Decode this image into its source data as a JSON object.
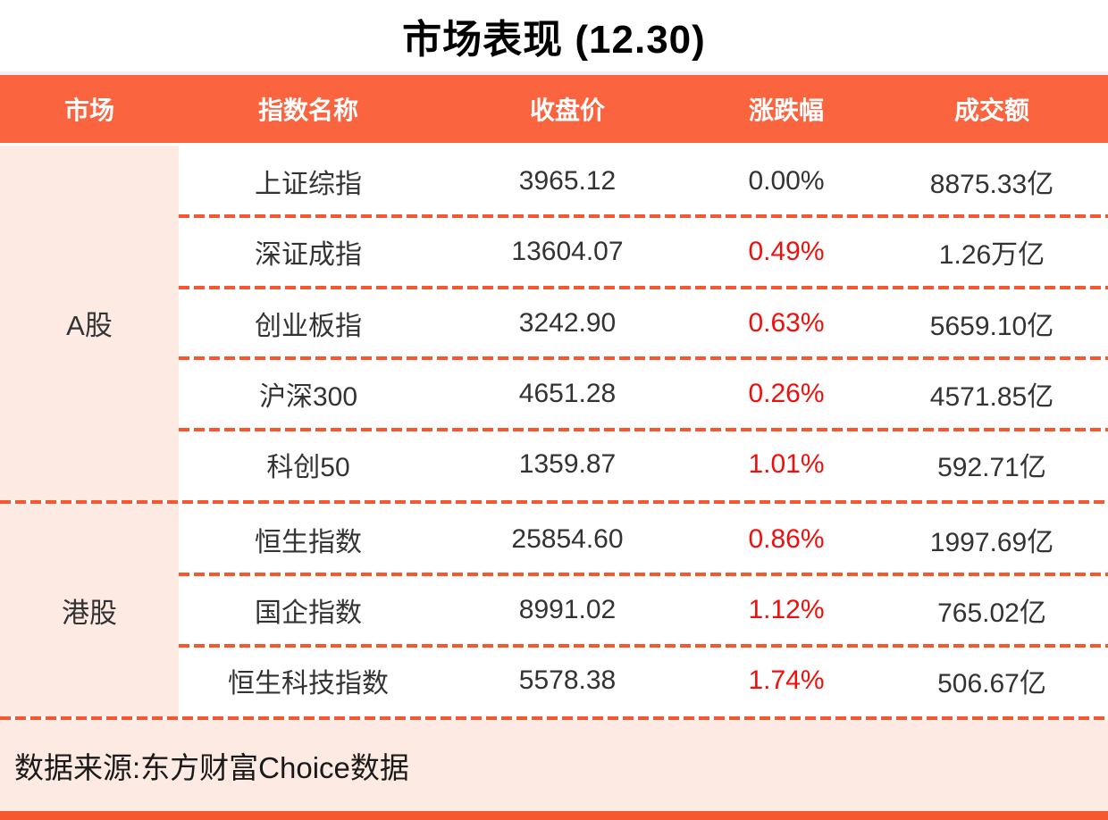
{
  "title": "市场表现 (12.30)",
  "colors": {
    "accent": "#FA6540",
    "dash": "#F7572E",
    "pink": "#FDEAE3",
    "red": "#EF100D",
    "text": "#333333",
    "header_text": "#FFFFFF"
  },
  "table": {
    "headers": [
      "市场",
      "指数名称",
      "收盘价",
      "涨跌幅",
      "成交额"
    ],
    "groups": [
      {
        "market": "A股",
        "rows": [
          {
            "name": "上证综指",
            "close": "3965.12",
            "change": "0.00%",
            "turnover": "8875.33亿"
          },
          {
            "name": "深证成指",
            "close": "13604.07",
            "change": "0.49%",
            "turnover": "1.26万亿"
          },
          {
            "name": "创业板指",
            "close": "3242.90",
            "change": "0.63%",
            "turnover": "5659.10亿"
          },
          {
            "name": "沪深300",
            "close": "4651.28",
            "change": "0.26%",
            "turnover": "4571.85亿"
          },
          {
            "name": "科创50",
            "close": "1359.87",
            "change": "1.01%",
            "turnover": "592.71亿"
          }
        ]
      },
      {
        "market": "港股",
        "rows": [
          {
            "name": "恒生指数",
            "close": "25854.60",
            "change": "0.86%",
            "turnover": "1997.69亿"
          },
          {
            "name": "国企指数",
            "close": "8991.02",
            "change": "1.12%",
            "turnover": "765.02亿"
          },
          {
            "name": "恒生科技指数",
            "close": "5578.38",
            "change": "1.74%",
            "turnover": "506.67亿"
          }
        ]
      }
    ]
  },
  "footer": {
    "source": "数据来源:东方财富Choice数据"
  },
  "chart_data": {
    "type": "table",
    "title": "市场表现 (12.30)",
    "columns": [
      "市场",
      "指数名称",
      "收盘价",
      "涨跌幅",
      "成交额"
    ],
    "rows": [
      [
        "A股",
        "上证综指",
        3965.12,
        "0.00%",
        "8875.33亿"
      ],
      [
        "A股",
        "深证成指",
        13604.07,
        "0.49%",
        "1.26万亿"
      ],
      [
        "A股",
        "创业板指",
        3242.9,
        "0.63%",
        "5659.10亿"
      ],
      [
        "A股",
        "沪深300",
        4651.28,
        "0.26%",
        "4571.85亿"
      ],
      [
        "A股",
        "科创50",
        1359.87,
        "1.01%",
        "592.71亿"
      ],
      [
        "港股",
        "恒生指数",
        25854.6,
        "0.86%",
        "1997.69亿"
      ],
      [
        "港股",
        "国企指数",
        8991.02,
        "1.12%",
        "765.02亿"
      ],
      [
        "港股",
        "恒生科技指数",
        5578.38,
        "1.74%",
        "506.67亿"
      ]
    ],
    "notes": "涨跌幅列以红色显示，首行(上证综指 0.00%)为深灰色；数据来源注脚见 footer.source"
  }
}
